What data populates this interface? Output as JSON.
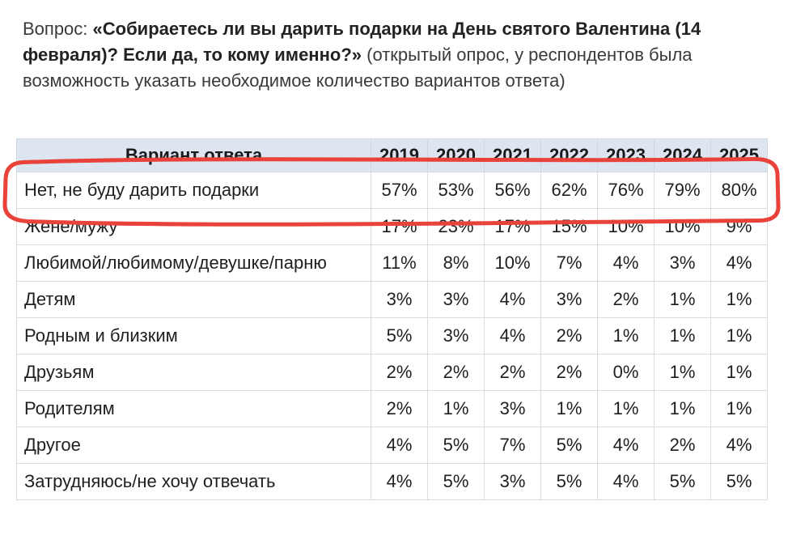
{
  "question": {
    "prefix": "Вопрос: ",
    "text": "«Собираетесь ли вы дарить подарки на День святого Валентина (14 февраля)? Если да, то кому именно?»",
    "note": " (открытый опрос, у респондентов была возможность указать необходимое количество вариантов ответа)"
  },
  "chart_data": {
    "type": "table",
    "columns": [
      "Вариант ответа",
      "2019",
      "2020",
      "2021",
      "2022",
      "2023",
      "2024",
      "2025"
    ],
    "rows": [
      {
        "label": "Нет, не буду дарить подарки",
        "values": [
          "57%",
          "53%",
          "56%",
          "62%",
          "76%",
          "79%",
          "80%"
        ]
      },
      {
        "label": "Жене/мужу",
        "values": [
          "17%",
          "23%",
          "17%",
          "15%",
          "10%",
          "10%",
          "9%"
        ]
      },
      {
        "label": "Любимой/любимому/девушке/парню",
        "values": [
          "11%",
          "8%",
          "10%",
          "7%",
          "4%",
          "3%",
          "4%"
        ]
      },
      {
        "label": "Детям",
        "values": [
          "3%",
          "3%",
          "4%",
          "3%",
          "2%",
          "1%",
          "1%"
        ]
      },
      {
        "label": "Родным и близким",
        "values": [
          "5%",
          "3%",
          "4%",
          "2%",
          "1%",
          "1%",
          "1%"
        ]
      },
      {
        "label": "Друзьям",
        "values": [
          "2%",
          "2%",
          "2%",
          "2%",
          "0%",
          "1%",
          "1%"
        ]
      },
      {
        "label": "Родителям",
        "values": [
          "2%",
          "1%",
          "3%",
          "1%",
          "1%",
          "1%",
          "1%"
        ]
      },
      {
        "label": "Другое",
        "values": [
          "4%",
          "5%",
          "7%",
          "5%",
          "4%",
          "2%",
          "4%"
        ]
      },
      {
        "label": "Затрудняюсь/не хочу отвечать",
        "values": [
          "4%",
          "5%",
          "3%",
          "5%",
          "4%",
          "5%",
          "5%"
        ]
      }
    ],
    "highlight": {
      "row": 0,
      "color": "#e8423a"
    }
  }
}
